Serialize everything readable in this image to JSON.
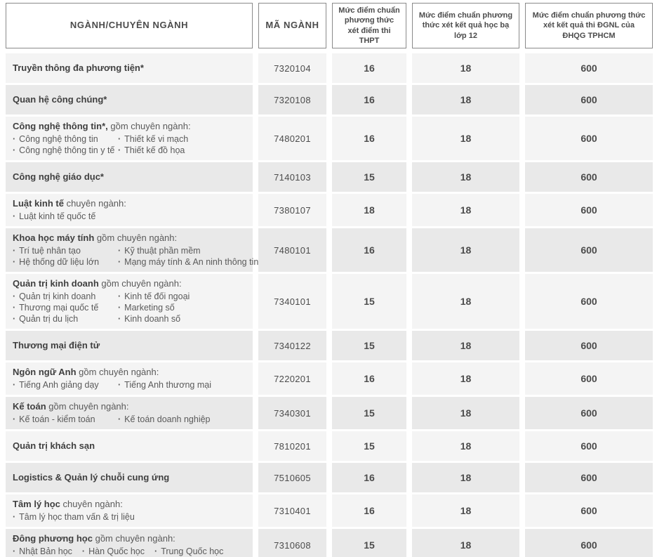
{
  "colors": {
    "row_light": "#f4f4f4",
    "row_dark": "#e9e9e9",
    "header_border": "#8a8a8a",
    "text": "#4c4c4c"
  },
  "chart_data": {
    "type": "table",
    "title": "",
    "columns": [
      "NGÀNH/CHUYÊN NGÀNH",
      "MÃ NGÀNH",
      "Mức điểm chuẩn phương thức xét điểm thi THPT",
      "Mức điểm chuẩn phương thức xét kết quả học bạ lớp 12",
      "Mức điểm chuẩn phương thức xét kết quả thi ĐGNL của ĐHQG TPHCM"
    ],
    "rows": [
      {
        "nganh": "Truyền thông đa phương tiện*",
        "nganh_note": "",
        "chuyen_nganh": [],
        "ma_nganh": "7320104",
        "diem_thi_thpt": "16",
        "diem_hoc_ba_12": "18",
        "diem_dgnl": "600"
      },
      {
        "nganh": "Quan hệ công chúng*",
        "nganh_note": "",
        "chuyen_nganh": [],
        "ma_nganh": "7320108",
        "diem_thi_thpt": "16",
        "diem_hoc_ba_12": "18",
        "diem_dgnl": "600"
      },
      {
        "nganh": "Công nghệ thông tin*,",
        "nganh_note": "gồm chuyên ngành:",
        "chuyen_nganh": [
          [
            "Công nghệ thông tin",
            "Thiết kế vi mạch"
          ],
          [
            "Công nghệ thông tin y tế",
            "Thiết kế đồ họa"
          ]
        ],
        "ma_nganh": "7480201",
        "diem_thi_thpt": "16",
        "diem_hoc_ba_12": "18",
        "diem_dgnl": "600"
      },
      {
        "nganh": "Công nghệ giáo dục*",
        "nganh_note": "",
        "chuyen_nganh": [],
        "ma_nganh": "7140103",
        "diem_thi_thpt": "15",
        "diem_hoc_ba_12": "18",
        "diem_dgnl": "600"
      },
      {
        "nganh": "Luật kinh tế",
        "nganh_note": "chuyên ngành:",
        "chuyen_nganh": [
          [
            "Luật kinh tế quốc tế"
          ]
        ],
        "ma_nganh": "7380107",
        "diem_thi_thpt": "18",
        "diem_hoc_ba_12": "18",
        "diem_dgnl": "600"
      },
      {
        "nganh": "Khoa học máy tính",
        "nganh_note": "gồm chuyên ngành:",
        "chuyen_nganh": [
          [
            "Trí tuệ nhân tạo",
            "Kỹ thuật phần mềm"
          ],
          [
            "Hệ thống dữ liệu lớn",
            "Mạng máy tính & An ninh thông tin"
          ]
        ],
        "ma_nganh": "7480101",
        "diem_thi_thpt": "16",
        "diem_hoc_ba_12": "18",
        "diem_dgnl": "600"
      },
      {
        "nganh": "Quản trị kinh doanh",
        "nganh_note": "gồm chuyên ngành:",
        "chuyen_nganh": [
          [
            "Quản trị kinh doanh",
            "Kinh tế đối ngoại"
          ],
          [
            "Thương mại quốc tế",
            "Marketing số"
          ],
          [
            "Quản trị du lịch",
            "Kinh doanh số"
          ]
        ],
        "ma_nganh": "7340101",
        "diem_thi_thpt": "15",
        "diem_hoc_ba_12": "18",
        "diem_dgnl": "600"
      },
      {
        "nganh": "Thương mại điện tử",
        "nganh_note": "",
        "chuyen_nganh": [],
        "ma_nganh": "7340122",
        "diem_thi_thpt": "15",
        "diem_hoc_ba_12": "18",
        "diem_dgnl": "600"
      },
      {
        "nganh": "Ngôn ngữ Anh",
        "nganh_note": "gồm chuyên ngành:",
        "chuyen_nganh": [
          [
            "Tiếng Anh giảng dạy",
            "Tiếng Anh thương mại"
          ]
        ],
        "ma_nganh": "7220201",
        "diem_thi_thpt": "16",
        "diem_hoc_ba_12": "18",
        "diem_dgnl": "600"
      },
      {
        "nganh": "Kế toán",
        "nganh_note": "gồm chuyên ngành:",
        "chuyen_nganh": [
          [
            "Kế toán - kiểm toán",
            "Kế toán doanh nghiệp"
          ]
        ],
        "ma_nganh": "7340301",
        "diem_thi_thpt": "15",
        "diem_hoc_ba_12": "18",
        "diem_dgnl": "600"
      },
      {
        "nganh": "Quản trị khách sạn",
        "nganh_note": "",
        "chuyen_nganh": [],
        "ma_nganh": "7810201",
        "diem_thi_thpt": "15",
        "diem_hoc_ba_12": "18",
        "diem_dgnl": "600"
      },
      {
        "nganh": "Logistics & Quản lý chuỗi cung ứng",
        "nganh_note": "",
        "chuyen_nganh": [],
        "ma_nganh": "7510605",
        "diem_thi_thpt": "16",
        "diem_hoc_ba_12": "18",
        "diem_dgnl": "600"
      },
      {
        "nganh": "Tâm lý học",
        "nganh_note": "chuyên ngành:",
        "chuyen_nganh": [
          [
            "Tâm lý học tham vấn & trị liệu"
          ]
        ],
        "ma_nganh": "7310401",
        "diem_thi_thpt": "16",
        "diem_hoc_ba_12": "18",
        "diem_dgnl": "600"
      },
      {
        "nganh": "Đông phương học",
        "nganh_note": "gồm chuyên ngành:",
        "chuyen_nganh": [
          [
            "Nhật Bản học",
            "Hàn Quốc học",
            "Trung Quốc học"
          ]
        ],
        "ma_nganh": "7310608",
        "diem_thi_thpt": "15",
        "diem_hoc_ba_12": "18",
        "diem_dgnl": "600"
      }
    ]
  }
}
